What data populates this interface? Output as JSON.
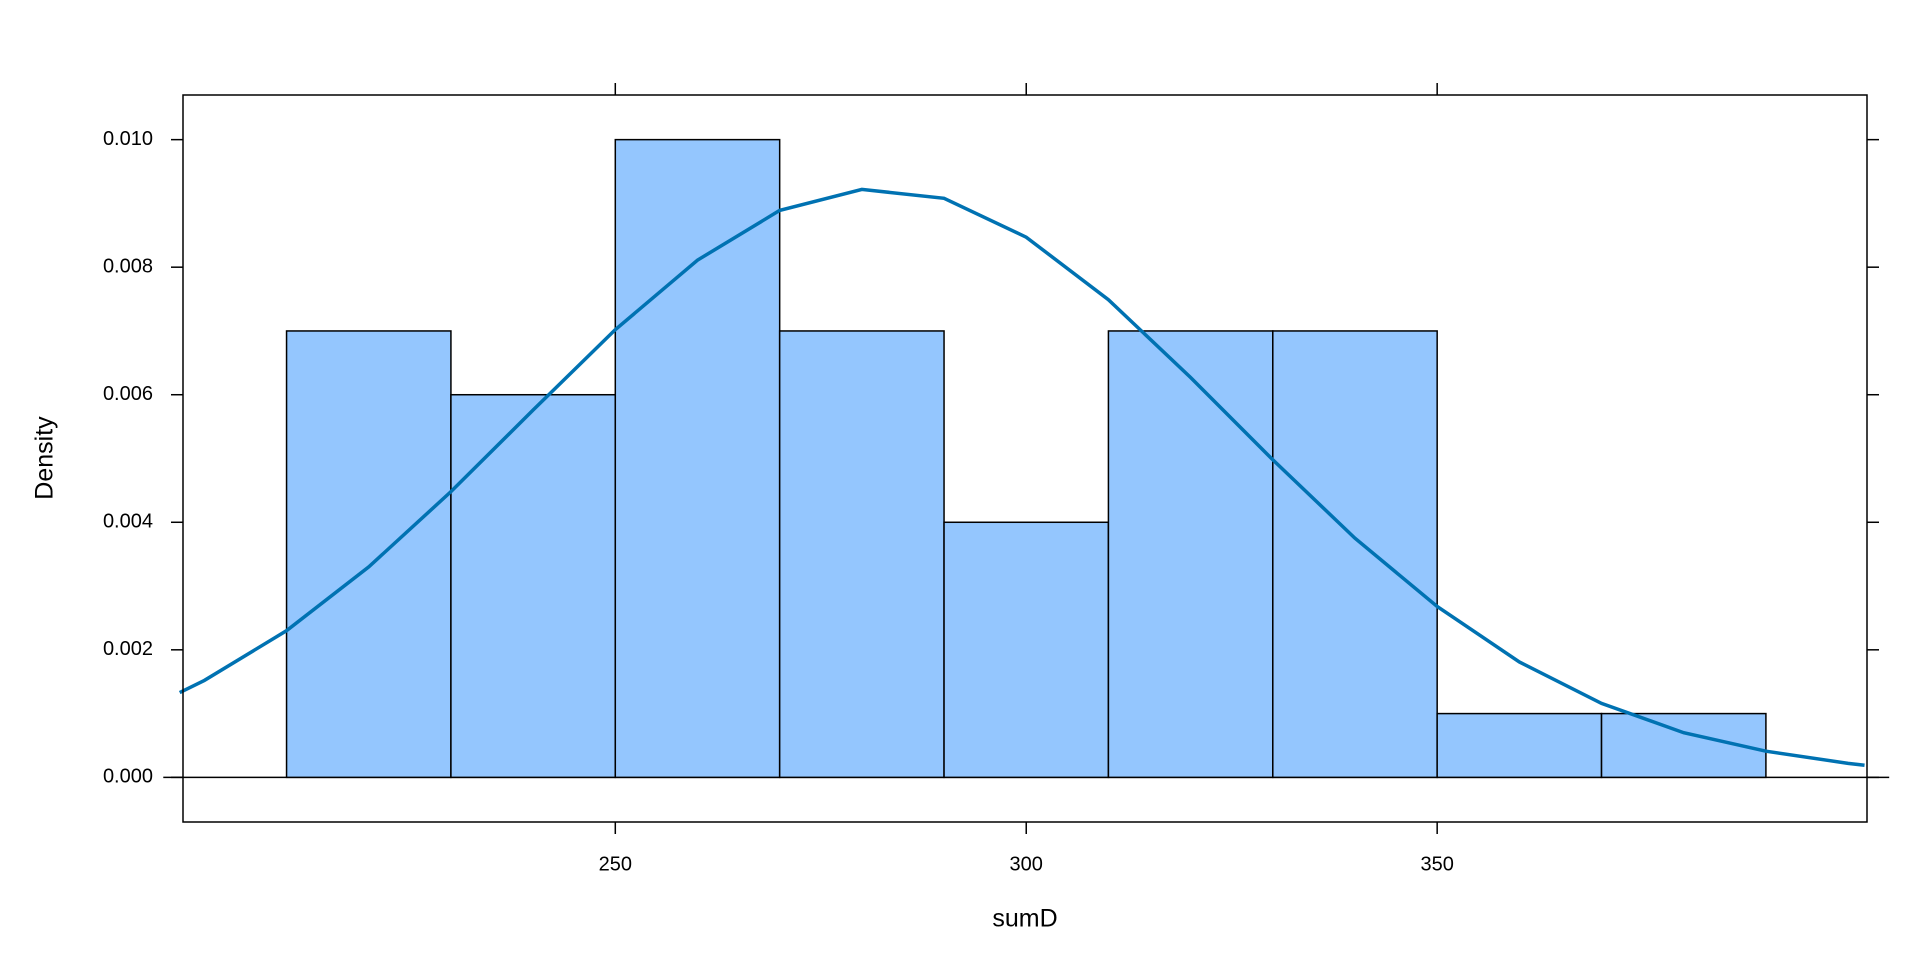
{
  "chart_data": {
    "type": "histogram",
    "xlabel": "sumD",
    "ylabel": "Density",
    "bins": [
      210,
      230,
      250,
      270,
      290,
      310,
      330,
      350,
      370,
      390
    ],
    "values": [
      0.007,
      0.006,
      0.01,
      0.007,
      0.004,
      0.007,
      0.007,
      0.001,
      0.001
    ],
    "color": "#94c6fe",
    "edge_color": "#000000",
    "density_curve": {
      "color": "#0072b2",
      "x": [
        197,
        200,
        210,
        220,
        230,
        240,
        250,
        260,
        270,
        280,
        290,
        300,
        310,
        320,
        330,
        340,
        350,
        360,
        370,
        380,
        390,
        400,
        402
      ],
      "y": [
        0.00133,
        0.00152,
        0.0023,
        0.0033,
        0.00448,
        0.00576,
        0.00702,
        0.00811,
        0.00889,
        0.00922,
        0.00908,
        0.00847,
        0.00749,
        0.00627,
        0.00498,
        0.00375,
        0.00268,
        0.00181,
        0.00116,
        0.0007,
        0.00041,
        0.00022,
        0.00019
      ]
    },
    "xlim": [
      197.4,
      402.3
    ],
    "xticks": [
      250,
      300,
      350
    ],
    "ylim": [
      -0.0007,
      0.0107
    ],
    "yticks": [
      {
        "value": 0,
        "label": "0.000"
      },
      {
        "value": 0.002,
        "label": "0.002"
      },
      {
        "value": 0.004,
        "label": "0.004"
      },
      {
        "value": 0.006,
        "label": "0.006"
      },
      {
        "value": 0.008,
        "label": "0.008"
      },
      {
        "value": 0.01,
        "label": "0.010"
      }
    ]
  }
}
